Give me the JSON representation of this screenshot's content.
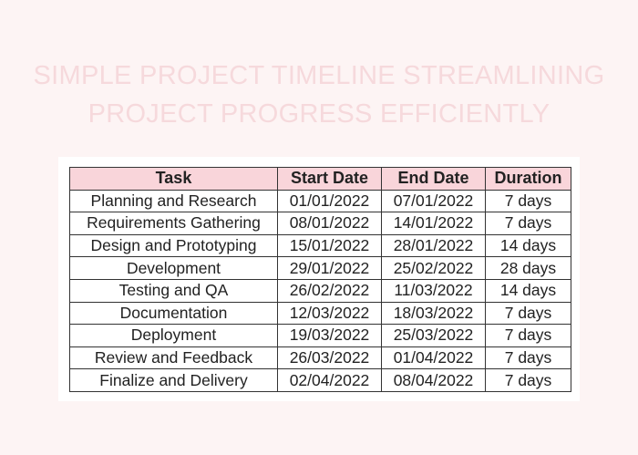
{
  "title": {
    "line1": "SIMPLE PROJECT TIMELINE STREAMLINING",
    "line2": "PROJECT PROGRESS EFFICIENTLY"
  },
  "colors": {
    "background": "#fdf4f4",
    "header_fill": "#f9d5da",
    "title": "#f6d9dc"
  },
  "table": {
    "headers": [
      "Task",
      "Start Date",
      "End Date",
      "Duration"
    ],
    "rows": [
      [
        "Planning and Research",
        "01/01/2022",
        "07/01/2022",
        "7 days"
      ],
      [
        "Requirements Gathering",
        "08/01/2022",
        "14/01/2022",
        "7 days"
      ],
      [
        "Design and Prototyping",
        "15/01/2022",
        "28/01/2022",
        "14 days"
      ],
      [
        "Development",
        "29/01/2022",
        "25/02/2022",
        "28 days"
      ],
      [
        "Testing and QA",
        "26/02/2022",
        "11/03/2022",
        "14 days"
      ],
      [
        "Documentation",
        "12/03/2022",
        "18/03/2022",
        "7 days"
      ],
      [
        "Deployment",
        "19/03/2022",
        "25/03/2022",
        "7 days"
      ],
      [
        "Review and Feedback",
        "26/03/2022",
        "01/04/2022",
        "7 days"
      ],
      [
        "Finalize and Delivery",
        "02/04/2022",
        "08/04/2022",
        "7 days"
      ]
    ]
  }
}
